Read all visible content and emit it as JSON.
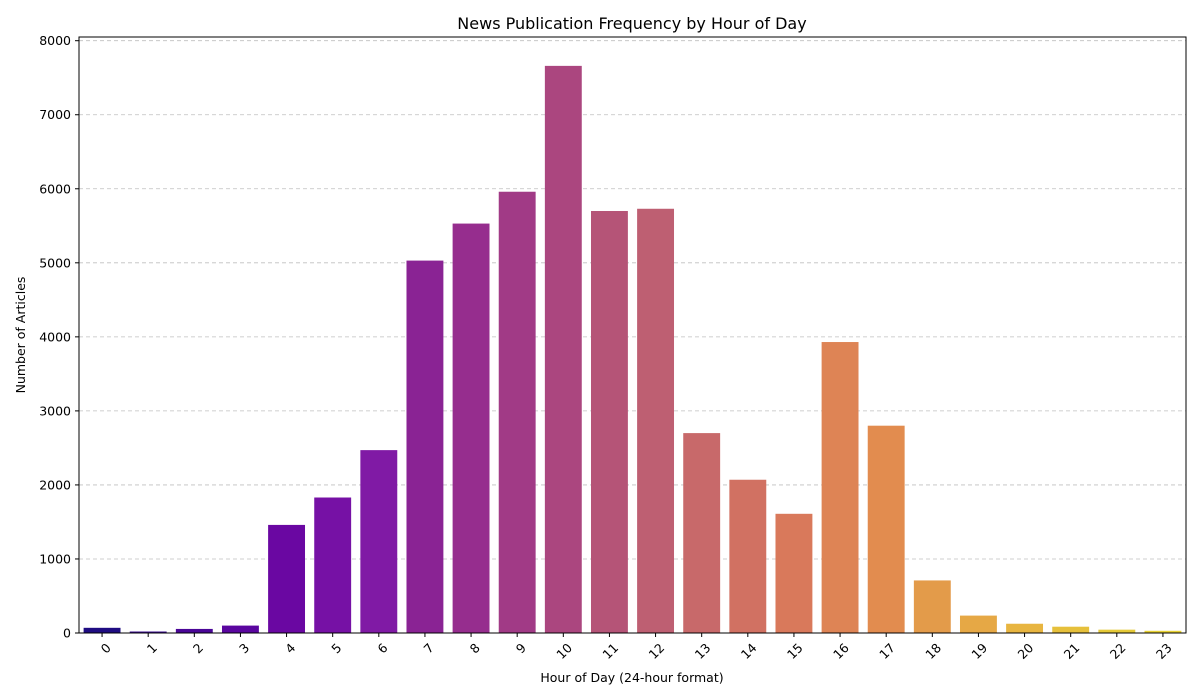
{
  "chart_data": {
    "type": "bar",
    "title": "News Publication Frequency by Hour of Day",
    "xlabel": "Hour of Day (24-hour format)",
    "ylabel": "Number of Articles",
    "categories": [
      "0",
      "1",
      "2",
      "3",
      "4",
      "5",
      "6",
      "7",
      "8",
      "9",
      "10",
      "11",
      "12",
      "13",
      "14",
      "15",
      "16",
      "17",
      "18",
      "19",
      "20",
      "21",
      "22",
      "23"
    ],
    "values": [
      70,
      20,
      55,
      100,
      1460,
      1830,
      2470,
      5030,
      5530,
      5960,
      7660,
      5700,
      5730,
      2700,
      2070,
      1610,
      3930,
      2800,
      710,
      235,
      125,
      85,
      45,
      30
    ],
    "ylim": [
      0,
      8050
    ],
    "yticks": [
      0,
      1000,
      2000,
      3000,
      4000,
      5000,
      6000,
      7000,
      8000
    ],
    "grid": "y-dashed",
    "colors": [
      "#1f0c82",
      "#37078f",
      "#4a0697",
      "#5a069f",
      "#6a07a2",
      "#7611a5",
      "#801aa5",
      "#8a2394",
      "#962d8e",
      "#a13a86",
      "#ab467f",
      "#b55477",
      "#be5f72",
      "#c8696a",
      "#d17162",
      "#d9795b",
      "#de8455",
      "#e28c4f",
      "#e39b4a",
      "#e6a845",
      "#e8b540",
      "#e6c03b",
      "#e5c937",
      "#e8d234"
    ]
  }
}
